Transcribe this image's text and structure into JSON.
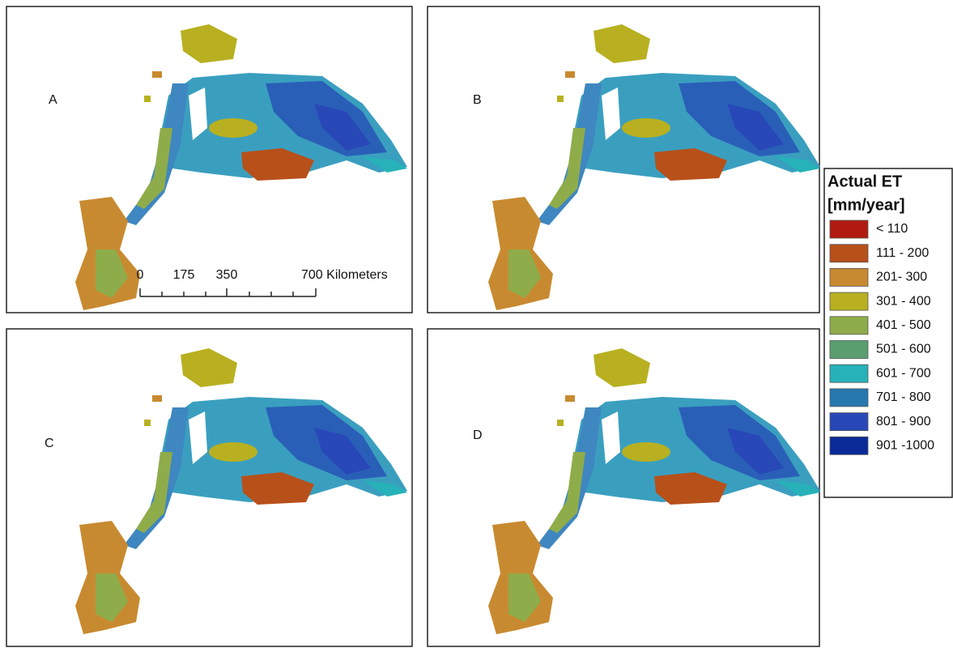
{
  "panels": [
    {
      "label": "A"
    },
    {
      "label": "B"
    },
    {
      "label": "C"
    },
    {
      "label": "D"
    }
  ],
  "scale_bar": {
    "labels": [
      "0",
      "175",
      "350",
      "700 Kilometers"
    ]
  },
  "legend": {
    "title": [
      "Actual ET",
      "[mm/year]"
    ],
    "items": [
      {
        "label": "< 110",
        "color": "#b01a10"
      },
      {
        "label": "111 - 200",
        "color": "#b8501a"
      },
      {
        "label": "201- 300",
        "color": "#c88a30"
      },
      {
        "label": "301 - 400",
        "color": "#b8b020"
      },
      {
        "label": "401 - 500",
        "color": "#8fac4a"
      },
      {
        "label": "501 - 600",
        "color": "#5a9e70"
      },
      {
        "label": "601 - 700",
        "color": "#26b2b8"
      },
      {
        "label": "701 - 800",
        "color": "#2878b0"
      },
      {
        "label": "801 - 900",
        "color": "#2848b8"
      },
      {
        "label": "901 -1000",
        "color": "#0a2a98"
      }
    ]
  }
}
